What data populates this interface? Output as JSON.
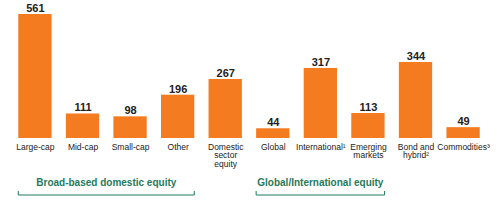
{
  "chart_data": {
    "type": "bar",
    "categories": [
      "Large-cap",
      "Mid-cap",
      "Small-cap",
      "Other",
      "Domestic sector equity",
      "Global",
      "International¹",
      "Emerging markets",
      "Bond and hybrid²",
      "Commodities³"
    ],
    "values": [
      561,
      111,
      98,
      196,
      267,
      44,
      317,
      113,
      344,
      49
    ],
    "color": "#f47b20",
    "ylim": [
      0,
      561
    ],
    "data_labels": true,
    "tick_labels": "x",
    "groups": [
      {
        "label": "Broad-based domestic equity",
        "from": "Large-cap",
        "to": "Other",
        "color": "#1f7a5c"
      },
      {
        "label": "Global/International equity",
        "from": "Global",
        "to": "Emerging markets",
        "color": "#1f7a5c"
      }
    ]
  }
}
